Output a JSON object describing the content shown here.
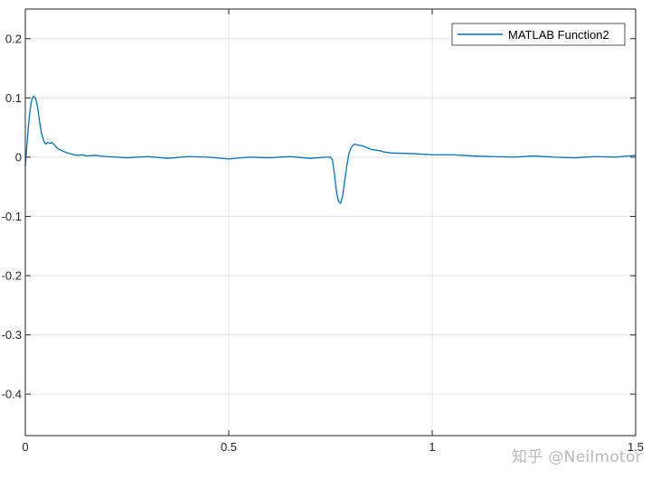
{
  "chart_data": {
    "type": "line",
    "title": "",
    "xlabel": "",
    "ylabel": "",
    "xlim": [
      0,
      1.5
    ],
    "ylim": [
      -0.47,
      0.25
    ],
    "xticks": [
      0,
      0.5,
      1,
      1.5
    ],
    "xtick_labels": [
      "0",
      "0.5",
      "1",
      "1.5"
    ],
    "yticks": [
      0.2,
      0.1,
      0,
      -0.1,
      -0.2,
      -0.3,
      -0.4
    ],
    "ytick_labels": [
      "0.2",
      "0.1",
      "0",
      "-0.1",
      "-0.2",
      "-0.3",
      "-0.4"
    ],
    "grid": true,
    "legend_position": "top-right",
    "series": [
      {
        "name": "MATLAB Function2",
        "color": "#0072bd",
        "x": [
          0,
          0.005,
          0.01,
          0.015,
          0.02,
          0.025,
          0.03,
          0.035,
          0.04,
          0.045,
          0.05,
          0.055,
          0.06,
          0.065,
          0.07,
          0.075,
          0.08,
          0.09,
          0.1,
          0.11,
          0.12,
          0.13,
          0.14,
          0.15,
          0.17,
          0.2,
          0.25,
          0.3,
          0.35,
          0.4,
          0.45,
          0.5,
          0.55,
          0.6,
          0.65,
          0.7,
          0.74,
          0.75,
          0.755,
          0.76,
          0.765,
          0.77,
          0.775,
          0.78,
          0.785,
          0.79,
          0.795,
          0.8,
          0.805,
          0.81,
          0.815,
          0.82,
          0.83,
          0.84,
          0.85,
          0.86,
          0.87,
          0.88,
          0.9,
          0.95,
          1.0,
          1.05,
          1.1,
          1.15,
          1.2,
          1.25,
          1.3,
          1.35,
          1.4,
          1.45,
          1.5
        ],
        "y": [
          -0.015,
          0.03,
          0.07,
          0.095,
          0.103,
          0.1,
          0.085,
          0.06,
          0.04,
          0.028,
          0.022,
          0.025,
          0.023,
          0.025,
          0.022,
          0.018,
          0.014,
          0.011,
          0.008,
          0.006,
          0.004,
          0.003,
          0.004,
          0.002,
          0.003,
          0.001,
          -0.001,
          0.001,
          -0.002,
          0.001,
          0.0,
          -0.003,
          0.0,
          -0.001,
          0.001,
          -0.002,
          0.0,
          0.0,
          -0.005,
          -0.03,
          -0.06,
          -0.075,
          -0.078,
          -0.065,
          -0.04,
          -0.015,
          0.005,
          0.015,
          0.02,
          0.022,
          0.021,
          0.02,
          0.019,
          0.016,
          0.013,
          0.012,
          0.011,
          0.009,
          0.007,
          0.006,
          0.004,
          0.004,
          0.002,
          0.001,
          0.0,
          0.002,
          0.0,
          -0.001,
          0.001,
          0.0,
          0.003
        ]
      }
    ]
  },
  "watermark": "知乎 @Neilmotor"
}
